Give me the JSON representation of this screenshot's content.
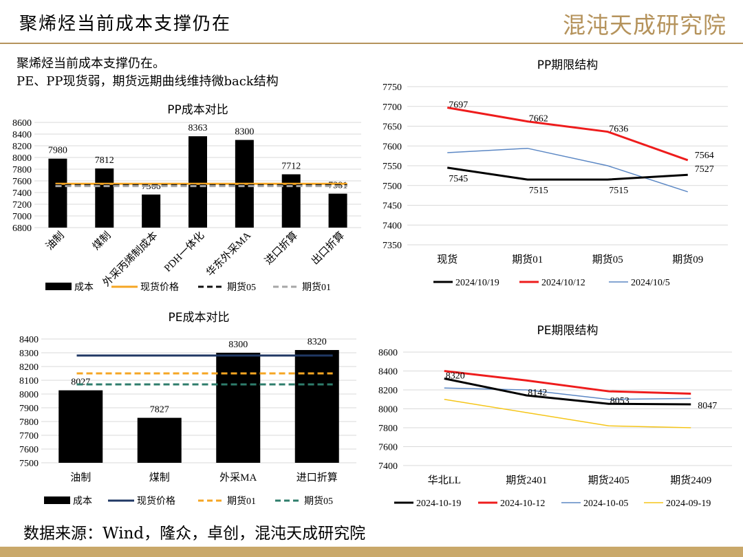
{
  "header": {
    "title": "聚烯烃当前成本支撑仍在",
    "logo": "混沌天成研究院"
  },
  "intro": {
    "line1": "聚烯烃当前成本支撑仍在。",
    "line2": "PE、PP现货弱，期货远期曲线维持微back结构"
  },
  "source": "数据来源：Wind，隆众，卓创，混沌天成研究院",
  "chart_data": [
    {
      "id": "pp_cost",
      "type": "bar",
      "title": "PP成本对比",
      "categories": [
        "油制",
        "煤制",
        "外采丙烯制成本",
        "PDH一体化",
        "华东外采MA",
        "进口折算",
        "出口折算"
      ],
      "values": [
        7980,
        7812,
        7366,
        8363,
        8300,
        7712,
        7381
      ],
      "data_labels": [
        "7980",
        "7812",
        "7366",
        "8363",
        "8300",
        "7712",
        "7381"
      ],
      "ylim": [
        6800,
        8600
      ],
      "yticks": [
        6800,
        7000,
        7200,
        7400,
        7600,
        7800,
        8000,
        8200,
        8400,
        8600
      ],
      "ytick_labels": [
        "6800",
        "7000",
        "7200",
        "7400",
        "7600",
        "7800",
        "8000",
        "8200",
        "8400",
        "8600"
      ],
      "bar_name": "成本",
      "lines": [
        {
          "name": "现货价格",
          "value": 7550,
          "color": "#f5a623",
          "style": "solid"
        },
        {
          "name": "期货05",
          "value": 7525,
          "color": "#111111",
          "style": "dashed"
        },
        {
          "name": "期货01",
          "value": 7510,
          "color": "#a6a6a6",
          "style": "dashed"
        }
      ],
      "grid": true,
      "legend": "bottom"
    },
    {
      "id": "pp_term",
      "type": "line",
      "title": "PP期限结构",
      "categories": [
        "现货",
        "期货01",
        "期货05",
        "期货09"
      ],
      "ylim": [
        7350,
        7750
      ],
      "yticks": [
        7350,
        7400,
        7450,
        7500,
        7550,
        7600,
        7650,
        7700,
        7750
      ],
      "ytick_labels": [
        "7350",
        "7400",
        "7450",
        "7500",
        "7550",
        "7600",
        "7650",
        "7700",
        "7750"
      ],
      "series": [
        {
          "name": "2024/10/19",
          "values": [
            7545,
            7515,
            7515,
            7527
          ],
          "labels": [
            "7545",
            "7515",
            "7515",
            "7527"
          ],
          "color": "#000000",
          "width": 3
        },
        {
          "name": "2024/10/12",
          "values": [
            7697,
            7662,
            7636,
            7564
          ],
          "labels": [
            "7697",
            "7662",
            "7636",
            "7564"
          ],
          "color": "#ee1c1c",
          "width": 3
        },
        {
          "name": "2024/10/5",
          "values": [
            7583,
            7594,
            7550,
            7484
          ],
          "color": "#5b87c4",
          "width": 1.5
        }
      ],
      "grid": true,
      "legend": "bottom"
    },
    {
      "id": "pe_cost",
      "type": "bar",
      "title": "PE成本对比",
      "categories": [
        "油制",
        "煤制",
        "外采MA",
        "进口折算"
      ],
      "values": [
        8027,
        7827,
        8300,
        8320
      ],
      "data_labels": [
        "8027",
        "7827",
        "8300",
        "8320"
      ],
      "ylim": [
        7500,
        8400
      ],
      "yticks": [
        7500,
        7600,
        7700,
        7800,
        7900,
        8000,
        8100,
        8200,
        8300,
        8400
      ],
      "ytick_labels": [
        "7500",
        "7600",
        "7700",
        "7800",
        "7900",
        "8000",
        "8100",
        "8200",
        "8300",
        "8400"
      ],
      "bar_name": "成本",
      "lines": [
        {
          "name": "现货价格",
          "value": 8280,
          "color": "#203864",
          "style": "solid"
        },
        {
          "name": "期货01",
          "value": 8150,
          "color": "#f5a623",
          "style": "dashed"
        },
        {
          "name": "期货05",
          "value": 8070,
          "color": "#2e7d6b",
          "style": "dashed"
        }
      ],
      "grid": true,
      "legend": "bottom"
    },
    {
      "id": "pe_term",
      "type": "line",
      "title": "PE期限结构",
      "categories": [
        "华北LL",
        "期货2401",
        "期货2405",
        "期货2409"
      ],
      "ylim": [
        7400,
        8600
      ],
      "yticks": [
        7400,
        7600,
        7800,
        8000,
        8200,
        8400,
        8600
      ],
      "ytick_labels": [
        "7400",
        "7600",
        "7800",
        "8000",
        "8200",
        "8400",
        "8600"
      ],
      "series": [
        {
          "name": "2024-10-19",
          "values": [
            8320,
            8142,
            8053,
            8047
          ],
          "labels": [
            "8320",
            "8142",
            "8053",
            "8047"
          ],
          "color": "#000000",
          "width": 3
        },
        {
          "name": "2024-10-12",
          "values": [
            8400,
            8300,
            8185,
            8160
          ],
          "color": "#ee1c1c",
          "width": 3
        },
        {
          "name": "2024-10-05",
          "values": [
            8220,
            8200,
            8100,
            8110
          ],
          "color": "#5b87c4",
          "width": 1.5
        },
        {
          "name": "2024-09-19",
          "values": [
            8100,
            7960,
            7820,
            7800
          ],
          "color": "#f5c518",
          "width": 1.5
        }
      ],
      "grid": true,
      "legend": "bottom"
    }
  ]
}
